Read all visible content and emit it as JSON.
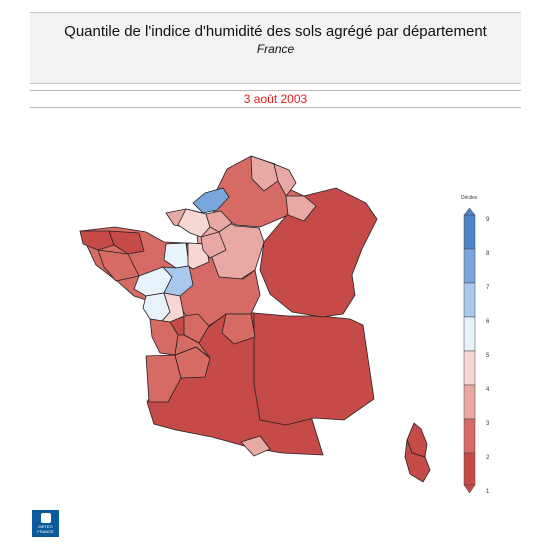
{
  "header": {
    "title": "Quantile de l'indice d'humidité des sols agrégé par département",
    "subtitle": "France",
    "date": "3 août 2003",
    "date_color": "#e31a1c"
  },
  "legend": {
    "title": "Déciles",
    "ticks": [
      "1",
      "2",
      "3",
      "4",
      "5",
      "6",
      "7",
      "8",
      "9"
    ],
    "colors": [
      "#c64a48",
      "#d66a64",
      "#e8a8a4",
      "#f8d6d4",
      "#e8f2fb",
      "#cfe1f5",
      "#a9c8ec",
      "#7aa6dc",
      "#4f84c8"
    ]
  },
  "logo": {
    "line1": "METEO",
    "line2": "FRANCE"
  },
  "map_regions": [
    {
      "id": "normandie-coast",
      "decile": 7
    },
    {
      "id": "paris-north",
      "decile": 3
    },
    {
      "id": "centre-west",
      "decile": 6
    },
    {
      "id": "loire",
      "decile": 6
    },
    {
      "id": "centre",
      "decile": 4
    },
    {
      "id": "east-north",
      "decile": 3
    },
    {
      "id": "southwest",
      "decile": 1
    },
    {
      "id": "south",
      "decile": 1
    },
    {
      "id": "east",
      "decile": 1
    },
    {
      "id": "corsica",
      "decile": 1
    }
  ]
}
